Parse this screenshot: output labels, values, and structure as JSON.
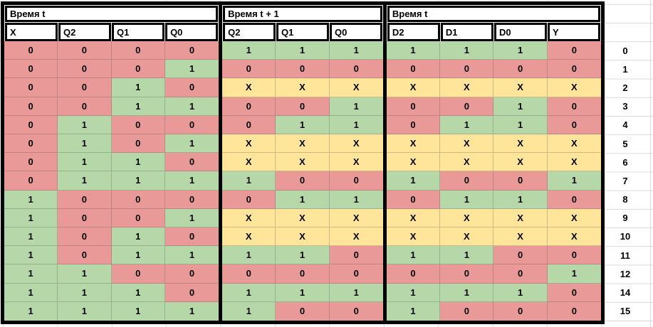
{
  "table": {
    "sections": [
      {
        "title": "Время t",
        "columns": [
          "X",
          "Q2",
          "Q1",
          "Q0"
        ]
      },
      {
        "title": "Время t + 1",
        "columns": [
          "Q2",
          "Q1",
          "Q0"
        ]
      },
      {
        "title": "Время t",
        "columns": [
          "D2",
          "D1",
          "D0",
          "Y"
        ]
      }
    ],
    "rows": [
      {
        "label": "0",
        "cells": [
          "0",
          "0",
          "0",
          "0",
          "1",
          "1",
          "1",
          "1",
          "1",
          "1",
          "0"
        ]
      },
      {
        "label": "1",
        "cells": [
          "0",
          "0",
          "0",
          "1",
          "0",
          "0",
          "0",
          "0",
          "0",
          "0",
          "0"
        ]
      },
      {
        "label": "2",
        "cells": [
          "0",
          "0",
          "1",
          "0",
          "X",
          "X",
          "X",
          "X",
          "X",
          "X",
          "X"
        ]
      },
      {
        "label": "3",
        "cells": [
          "0",
          "0",
          "1",
          "1",
          "0",
          "0",
          "1",
          "0",
          "0",
          "1",
          "0"
        ]
      },
      {
        "label": "4",
        "cells": [
          "0",
          "1",
          "0",
          "0",
          "0",
          "1",
          "1",
          "0",
          "1",
          "1",
          "0"
        ]
      },
      {
        "label": "5",
        "cells": [
          "0",
          "1",
          "0",
          "1",
          "X",
          "X",
          "X",
          "X",
          "X",
          "X",
          "X"
        ]
      },
      {
        "label": "6",
        "cells": [
          "0",
          "1",
          "1",
          "0",
          "X",
          "X",
          "X",
          "X",
          "X",
          "X",
          "X"
        ]
      },
      {
        "label": "7",
        "cells": [
          "0",
          "1",
          "1",
          "1",
          "1",
          "0",
          "0",
          "1",
          "0",
          "0",
          "1"
        ]
      },
      {
        "label": "8",
        "cells": [
          "1",
          "0",
          "0",
          "0",
          "0",
          "1",
          "1",
          "0",
          "1",
          "1",
          "0"
        ]
      },
      {
        "label": "9",
        "cells": [
          "1",
          "0",
          "0",
          "1",
          "X",
          "X",
          "X",
          "X",
          "X",
          "X",
          "X"
        ]
      },
      {
        "label": "10",
        "cells": [
          "1",
          "0",
          "1",
          "0",
          "X",
          "X",
          "X",
          "X",
          "X",
          "X",
          "X"
        ]
      },
      {
        "label": "11",
        "cells": [
          "1",
          "0",
          "1",
          "1",
          "1",
          "1",
          "0",
          "1",
          "1",
          "0",
          "0"
        ]
      },
      {
        "label": "12",
        "cells": [
          "1",
          "1",
          "0",
          "0",
          "0",
          "0",
          "0",
          "0",
          "0",
          "0",
          "1"
        ]
      },
      {
        "label": "14",
        "cells": [
          "1",
          "1",
          "1",
          "0",
          "1",
          "1",
          "1",
          "1",
          "1",
          "1",
          "0"
        ]
      },
      {
        "label": "15",
        "cells": [
          "1",
          "1",
          "1",
          "1",
          "1",
          "0",
          "0",
          "1",
          "0",
          "0",
          "0"
        ]
      }
    ]
  },
  "colors": {
    "fill_0": "#ea9999",
    "fill_1": "#b6d7a8",
    "fill_X": "#ffe599",
    "header_bg": "#ffffff",
    "border": "#000000",
    "gridline": "#d9d9d9"
  }
}
